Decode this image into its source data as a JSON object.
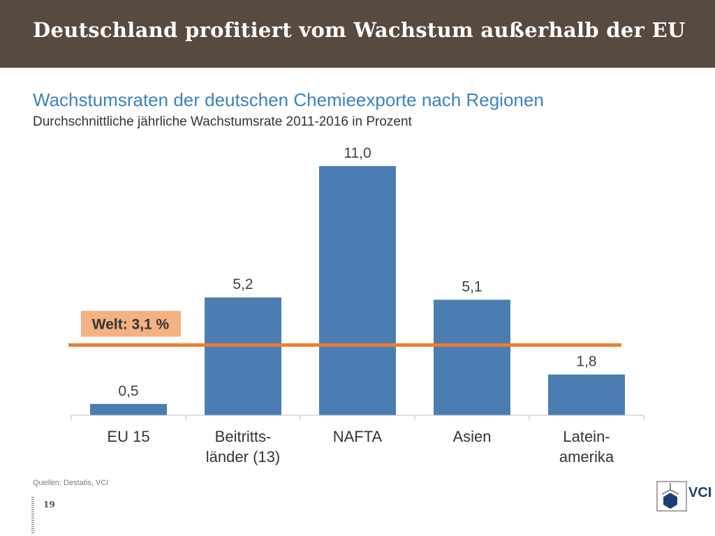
{
  "header": {
    "title": "Deutschland profitiert vom Wachstum außerhalb der EU"
  },
  "subtitle": "Wachstumsraten der deutschen Chemieexporte nach Regionen",
  "subtitle2": "Durchschnittliche jährliche Wachstumsrate 2011-2016 in Prozent",
  "chart_data": {
    "type": "bar",
    "categories": [
      [
        "EU 15"
      ],
      [
        "Beitritts-",
        "länder (13)"
      ],
      [
        "NAFTA"
      ],
      [
        "Asien"
      ],
      [
        "Latein-",
        "amerika"
      ]
    ],
    "values": [
      0.5,
      5.2,
      11.0,
      5.1,
      1.8
    ],
    "value_labels": [
      "0,5",
      "5,2",
      "11,0",
      "5,1",
      "1,8"
    ],
    "ylim": [
      0,
      11
    ],
    "reference_line": {
      "value": 3.1,
      "label": "Welt: 3,1 %"
    },
    "colors": {
      "bar": "#4a7eb2",
      "line": "#ed7d31",
      "label_bg": "#f4b183"
    },
    "grid": false
  },
  "footer": {
    "source": "Quellen: Destatis, VCI",
    "page_number": "19",
    "logo_text": "VCI"
  },
  "colors": {
    "header_bg": "#574a40",
    "subtitle": "#3b82bd"
  }
}
